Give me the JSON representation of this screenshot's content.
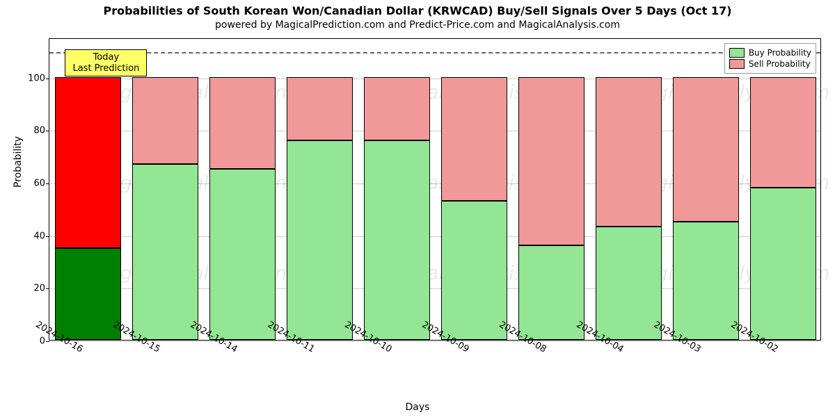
{
  "title": "Probabilities of South Korean Won/Canadian Dollar (KRWCAD) Buy/Sell Signals Over 5 Days (Oct 17)",
  "subtitle": "powered by MagicalPrediction.com and Predict-Price.com and MagicalAnalysis.com",
  "xlabel": "Days",
  "ylabel": "Probability",
  "annotation": {
    "line1": "Today",
    "line2": "Last Prediction"
  },
  "legend": {
    "buy": "Buy Probability",
    "sell": "Sell Probability"
  },
  "chart": {
    "type": "stacked-bar",
    "ylim": [
      0,
      115
    ],
    "ytick_step": 20,
    "yticks": [
      0,
      20,
      40,
      60,
      80,
      100
    ],
    "reference_line_y": 110,
    "bar_width": 0.85,
    "background_color": "#ffffff",
    "grid_color": "#b0b0b0",
    "border_color": "#000000",
    "colors": {
      "buy": "#93e693",
      "sell": "#f19999",
      "buy_highlight": "#008000",
      "sell_highlight": "#ff0000",
      "annotation_bg": "#ffff66",
      "dash": "#666666"
    },
    "categories": [
      "2024-10-16",
      "2024-10-15",
      "2024-10-14",
      "2024-10-11",
      "2024-10-10",
      "2024-10-09",
      "2024-10-08",
      "2024-10-04",
      "2024-10-03",
      "2024-10-02"
    ],
    "buy_values": [
      35,
      67,
      65,
      76,
      76,
      53,
      36,
      43,
      45,
      58
    ],
    "sell_values": [
      65,
      33,
      35,
      24,
      24,
      47,
      64,
      57,
      55,
      42
    ],
    "highlight_index": 0
  },
  "watermark_text": "MagicalAnalysis.com",
  "title_fontsize": 16,
  "subtitle_fontsize": 14,
  "label_fontsize": 14,
  "tick_fontsize": 13
}
